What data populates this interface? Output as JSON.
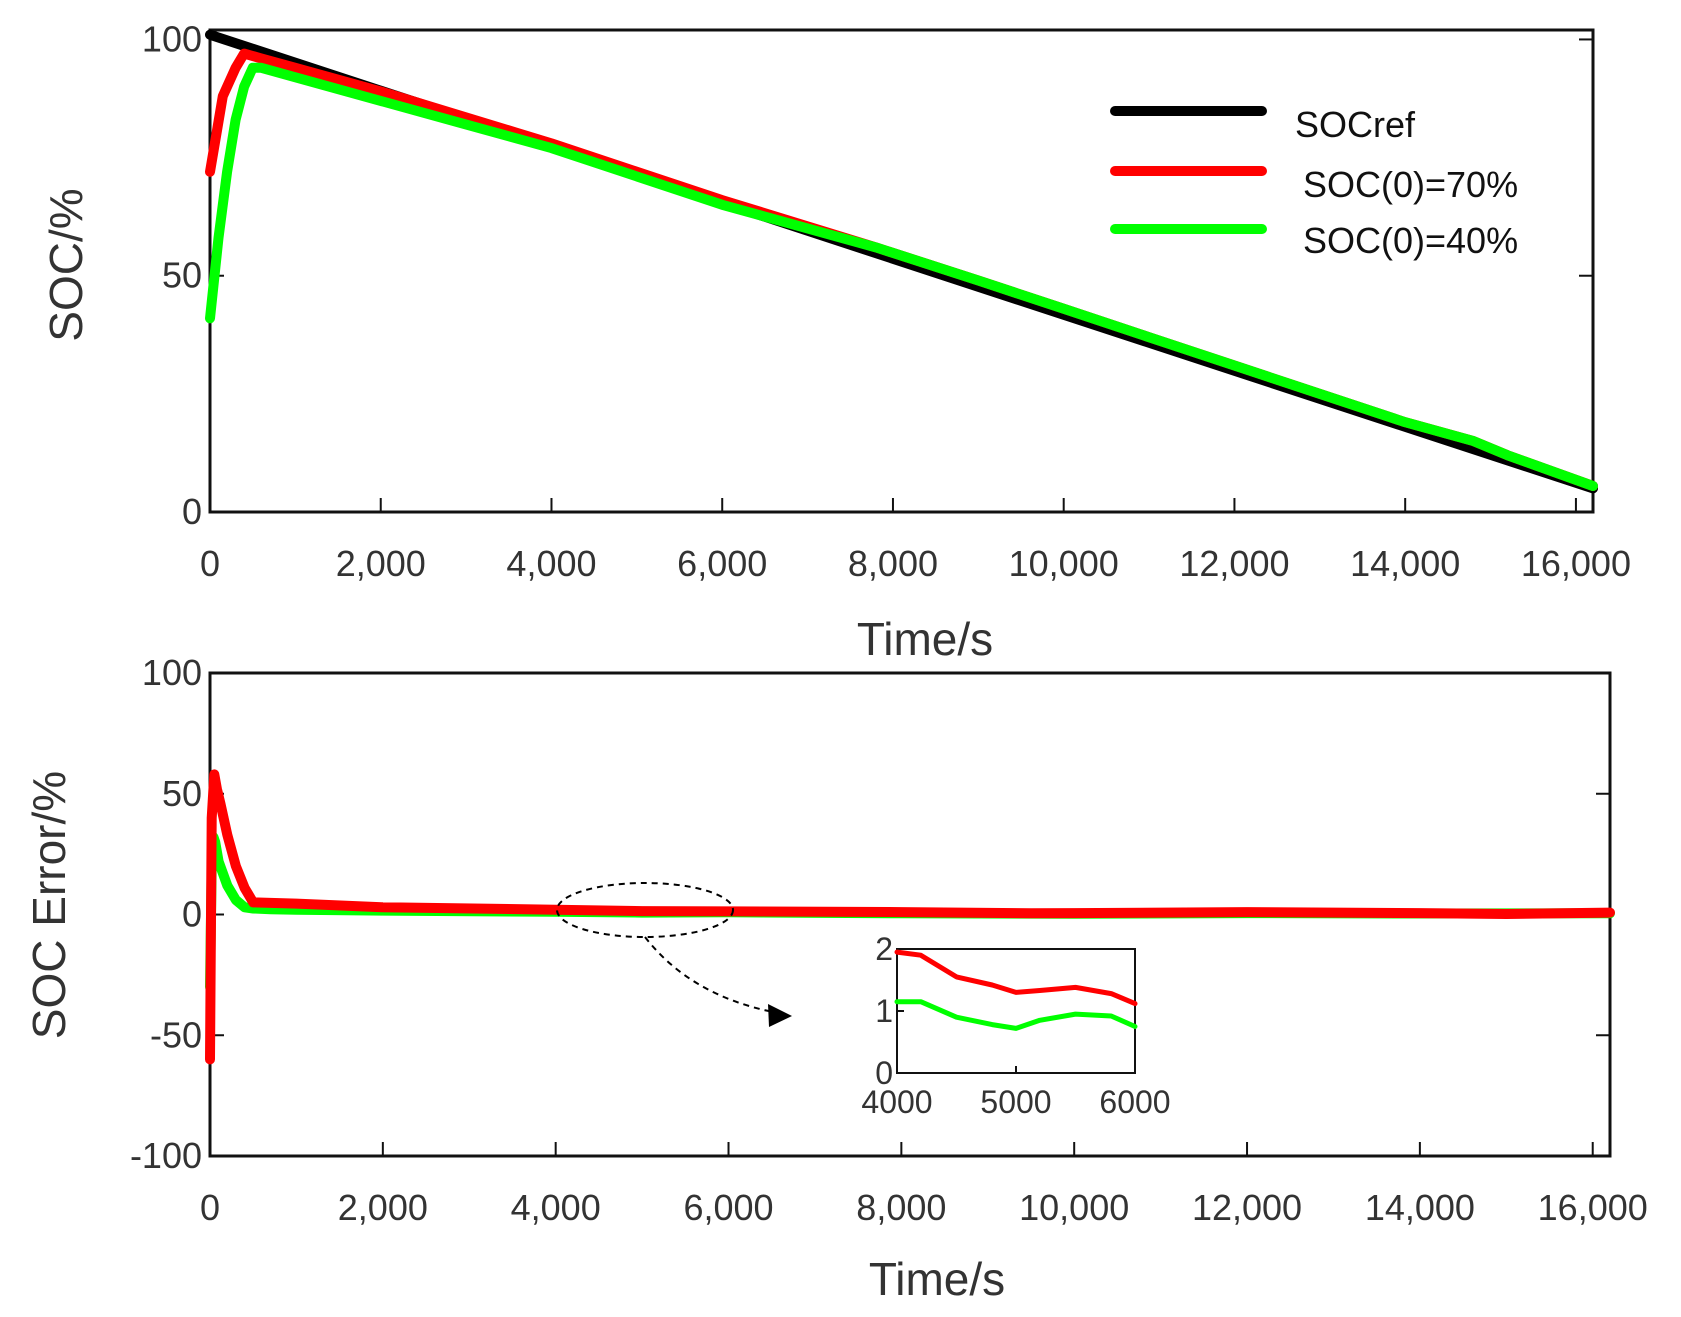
{
  "chart_data": [
    {
      "type": "line",
      "title": "",
      "xlabel": "Time/s",
      "ylabel": "SOC/%",
      "xlim": [
        0,
        16200
      ],
      "ylim": [
        0,
        102
      ],
      "xticks": [
        0,
        2000,
        4000,
        6000,
        8000,
        10000,
        12000,
        14000,
        16000
      ],
      "xtick_labels": [
        "0",
        "2,000",
        "4,000",
        "6,000",
        "8,000",
        "10,000",
        "12,000",
        "14,000",
        "16,000"
      ],
      "yticks": [
        0,
        50,
        100
      ],
      "ytick_labels": [
        "0",
        "50",
        "100"
      ],
      "legend": [
        "SOCref",
        "SOC(0)=70%",
        "SOC(0)=40%"
      ],
      "legend_position": "top-right",
      "series": [
        {
          "name": "SOCref",
          "color": "#000000",
          "x": [
            0,
            16200
          ],
          "y": [
            101,
            5
          ]
        },
        {
          "name": "SOC(0)=70%",
          "color": "#ff0000",
          "x": [
            0,
            150,
            300,
            400,
            600,
            1000,
            2000,
            4000,
            6000,
            7800,
            9000,
            10000,
            11000,
            12000,
            13000,
            14000,
            14800,
            15200,
            16200
          ],
          "y": [
            72,
            88,
            94,
            97,
            96,
            94,
            89,
            78,
            66,
            56,
            49,
            43,
            37,
            31,
            25,
            19,
            15,
            12,
            5.5
          ]
        },
        {
          "name": "SOC(0)=40%",
          "color": "#00ff00",
          "x": [
            0,
            100,
            200,
            300,
            400,
            500,
            600,
            1000,
            2000,
            4000,
            6000,
            7800,
            9000,
            10000,
            11000,
            12000,
            13000,
            14000,
            14800,
            15200,
            16200
          ],
          "y": [
            41,
            58,
            72,
            83,
            90,
            94,
            94,
            92,
            87,
            77,
            65,
            56,
            49,
            43,
            37,
            31,
            25,
            19,
            15,
            12,
            5.5
          ]
        }
      ]
    },
    {
      "type": "line",
      "title": "",
      "xlabel": "Time/s",
      "ylabel": "SOC Error/%",
      "xlim": [
        0,
        16200
      ],
      "ylim": [
        -100,
        100
      ],
      "xticks": [
        0,
        2000,
        4000,
        6000,
        8000,
        10000,
        12000,
        14000,
        16000
      ],
      "xtick_labels": [
        "0",
        "2,000",
        "4,000",
        "6,000",
        "8,000",
        "10,000",
        "12,000",
        "14,000",
        "16,000"
      ],
      "yticks": [
        -100,
        -50,
        0,
        50,
        100
      ],
      "ytick_labels": [
        "-100",
        "-50",
        "0",
        "50",
        "100"
      ],
      "series": [
        {
          "name": "SOC(0)=40%",
          "color": "#00ff00",
          "x": [
            0,
            20,
            40,
            60,
            100,
            200,
            300,
            400,
            500,
            700,
            1000,
            2000,
            4000,
            5000,
            6000,
            8000,
            10000,
            12000,
            14000,
            16200
          ],
          "y": [
            -30,
            20,
            32,
            30,
            22,
            12,
            6,
            3,
            2.5,
            2.2,
            2,
            1.6,
            1.1,
            0.8,
            0.9,
            0.5,
            0.3,
            0.6,
            0.4,
            0.5
          ]
        },
        {
          "name": "SOC(0)=70%",
          "color": "#ff0000",
          "x": [
            0,
            20,
            50,
            80,
            120,
            200,
            300,
            400,
            500,
            700,
            1000,
            2000,
            4000,
            5000,
            6000,
            8000,
            9500,
            10000,
            12000,
            14000,
            15000,
            16200
          ],
          "y": [
            -60,
            40,
            58,
            52,
            46,
            33,
            20,
            11,
            5,
            4.8,
            4.5,
            3,
            2,
            1.4,
            1.3,
            1.0,
            0.5,
            0.6,
            1.0,
            0.6,
            0.2,
            0.8
          ]
        }
      ],
      "annotation": {
        "type": "zoom-inset",
        "source_xlim": [
          4000,
          6000
        ],
        "inset": {
          "xlim": [
            4000,
            6000
          ],
          "ylim": [
            0,
            2
          ],
          "xticks": [
            4000,
            5000,
            6000
          ],
          "xtick_labels": [
            "4000",
            "5000",
            "6000"
          ],
          "yticks": [
            0,
            1,
            2
          ],
          "ytick_labels": [
            "0",
            "1",
            "2"
          ],
          "series": [
            {
              "name": "SOC(0)=70%",
              "color": "#ff0000",
              "x": [
                4000,
                4200,
                4500,
                4800,
                5000,
                5200,
                5500,
                5800,
                6000
              ],
              "y": [
                1.95,
                1.9,
                1.55,
                1.42,
                1.3,
                1.33,
                1.38,
                1.28,
                1.12
              ]
            },
            {
              "name": "SOC(0)=40%",
              "color": "#00ff00",
              "x": [
                4000,
                4200,
                4500,
                4800,
                5000,
                5200,
                5500,
                5800,
                6000
              ],
              "y": [
                1.15,
                1.15,
                0.9,
                0.78,
                0.72,
                0.85,
                0.95,
                0.92,
                0.75
              ]
            }
          ]
        }
      }
    }
  ]
}
